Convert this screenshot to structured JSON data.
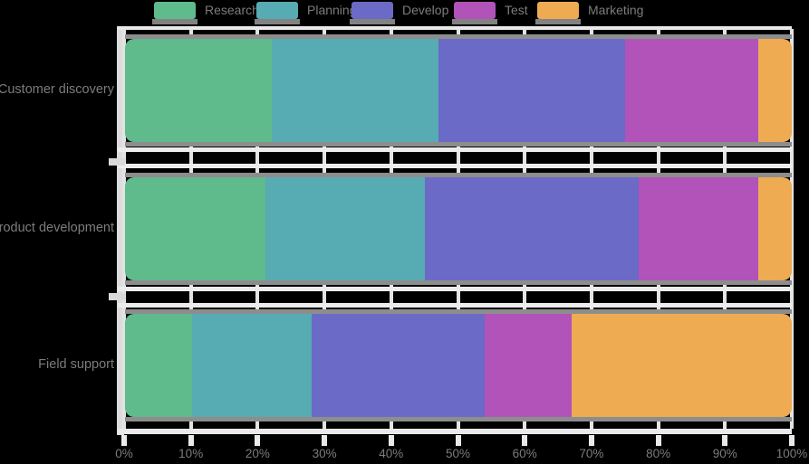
{
  "chart_data": {
    "type": "bar",
    "orientation": "horizontal",
    "stacked": true,
    "title": "",
    "xlabel": "",
    "ylabel": "",
    "xlim": [
      0,
      100
    ],
    "grid": true,
    "legend_position": "top",
    "categories": [
      "Customer discovery",
      "Product development",
      "Field support"
    ],
    "series": [
      {
        "name": "Research",
        "color": "#5fba8c",
        "values": [
          22,
          21,
          10
        ]
      },
      {
        "name": "Planning",
        "color": "#57abb3",
        "values": [
          25,
          24,
          18
        ]
      },
      {
        "name": "Develop",
        "color": "#6b6ac6",
        "values": [
          28,
          32,
          26
        ]
      },
      {
        "name": "Test",
        "color": "#b153b8",
        "values": [
          20,
          18,
          13
        ]
      },
      {
        "name": "Marketing",
        "color": "#eeab52",
        "values": [
          5,
          5,
          33
        ]
      }
    ],
    "xticks": [
      "0%",
      "10%",
      "20%",
      "30%",
      "40%",
      "50%",
      "60%",
      "70%",
      "80%",
      "90%",
      "100%"
    ]
  },
  "colors": {
    "background": "#000000",
    "grid_major": "#e9e9e9",
    "grid_minor": "#ececec",
    "spine": "#dcdcdc",
    "bar_track": "#8d8d8d",
    "text": "#7c7c7c",
    "legend_shadow": "#828282"
  }
}
